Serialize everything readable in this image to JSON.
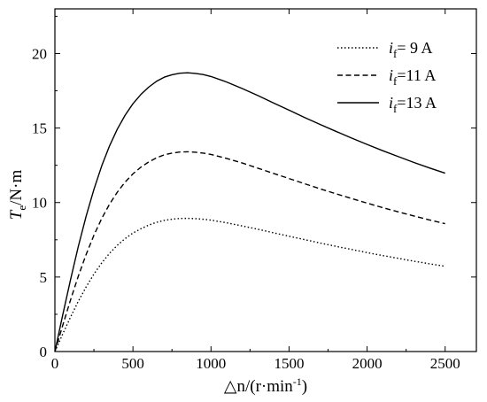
{
  "chart_data": {
    "type": "line",
    "title": "",
    "xlabel": {
      "main": "△n/(r·min",
      "sup": "-1",
      "tail": ")"
    },
    "ylabel": {
      "main": "T",
      "sub": "e",
      "tail": "/N·m"
    },
    "xlim": [
      0,
      2700
    ],
    "ylim": [
      0,
      23
    ],
    "xticks": [
      0,
      500,
      1000,
      1500,
      2000,
      2500
    ],
    "yticks": [
      0,
      5,
      10,
      15,
      20
    ],
    "xtick_labels": [
      "0",
      "500",
      "1000",
      "1500",
      "2000",
      "2500"
    ],
    "ytick_labels": [
      "0",
      "5",
      "10",
      "15",
      "20"
    ],
    "legend_position": "top-right",
    "grid": false,
    "series": [
      {
        "name": "9 A",
        "legend_prefix": "i",
        "legend_sub": "f",
        "legend_value": "= 9 A",
        "style": "dotted",
        "x": [
          0,
          50,
          100,
          150,
          200,
          250,
          300,
          350,
          400,
          450,
          500,
          550,
          600,
          650,
          700,
          750,
          800,
          850,
          900,
          950,
          1000,
          1100,
          1200,
          1300,
          1400,
          1500,
          1600,
          1700,
          1800,
          1900,
          2000,
          2100,
          2200,
          2300,
          2400,
          2500
        ],
        "y": [
          0,
          1.17,
          2.3,
          3.37,
          4.34,
          5.2,
          5.95,
          6.59,
          7.13,
          7.58,
          7.95,
          8.24,
          8.48,
          8.67,
          8.8,
          8.88,
          8.93,
          8.94,
          8.92,
          8.88,
          8.82,
          8.64,
          8.43,
          8.21,
          7.97,
          7.74,
          7.51,
          7.28,
          7.06,
          6.85,
          6.64,
          6.44,
          6.25,
          6.06,
          5.89,
          5.72
        ]
      },
      {
        "name": "11 A",
        "legend_prefix": "i",
        "legend_sub": "f",
        "legend_value": "=11 A",
        "style": "dashed",
        "x": [
          0,
          50,
          100,
          150,
          200,
          250,
          300,
          350,
          400,
          450,
          500,
          550,
          600,
          650,
          700,
          750,
          800,
          850,
          900,
          950,
          1000,
          1100,
          1200,
          1300,
          1400,
          1500,
          1600,
          1700,
          1800,
          1900,
          2000,
          2100,
          2200,
          2300,
          2400,
          2500
        ],
        "y": [
          0,
          1.75,
          3.45,
          5.05,
          6.52,
          7.81,
          8.93,
          9.89,
          10.7,
          11.37,
          11.92,
          12.37,
          12.72,
          13.0,
          13.2,
          13.32,
          13.39,
          13.41,
          13.38,
          13.32,
          13.23,
          12.96,
          12.65,
          12.31,
          11.96,
          11.61,
          11.26,
          10.92,
          10.59,
          10.27,
          9.96,
          9.66,
          9.37,
          9.1,
          8.83,
          8.58
        ]
      },
      {
        "name": "13 A",
        "legend_prefix": "i",
        "legend_sub": "f",
        "legend_value": "=13 A",
        "style": "solid",
        "x": [
          0,
          50,
          100,
          150,
          200,
          250,
          300,
          350,
          400,
          450,
          500,
          550,
          600,
          650,
          700,
          750,
          800,
          850,
          900,
          950,
          1000,
          1100,
          1200,
          1300,
          1400,
          1500,
          1600,
          1700,
          1800,
          1900,
          2000,
          2100,
          2200,
          2300,
          2400,
          2500
        ],
        "y": [
          0,
          2.44,
          4.81,
          7.04,
          9.09,
          10.89,
          12.46,
          13.8,
          14.93,
          15.86,
          16.63,
          17.25,
          17.74,
          18.13,
          18.41,
          18.58,
          18.68,
          18.71,
          18.67,
          18.59,
          18.46,
          18.09,
          17.65,
          17.18,
          16.69,
          16.2,
          15.71,
          15.24,
          14.78,
          14.33,
          13.9,
          13.48,
          13.08,
          12.69,
          12.32,
          11.97
        ]
      }
    ]
  }
}
